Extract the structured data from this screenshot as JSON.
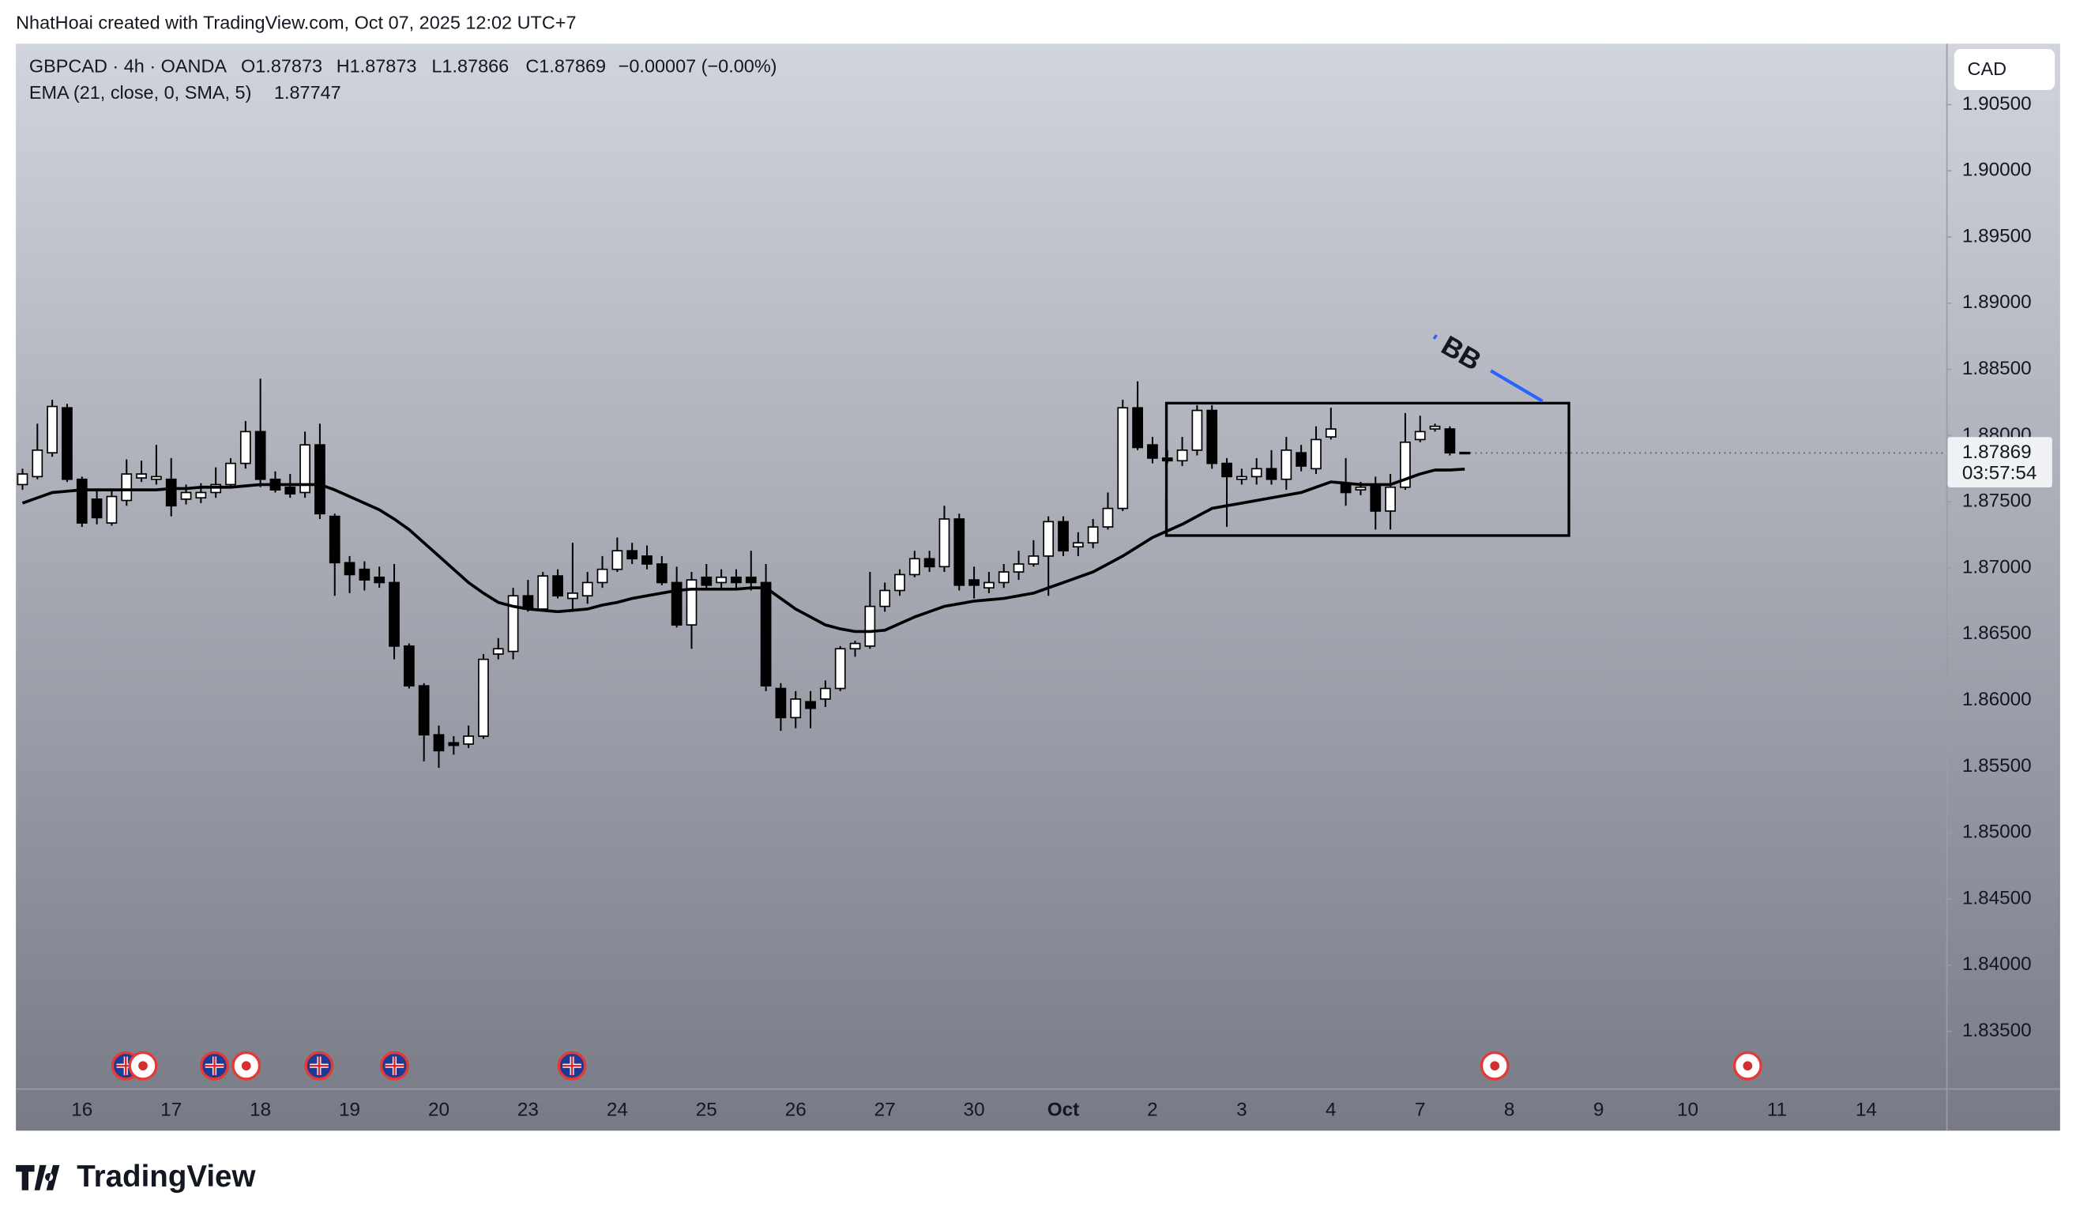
{
  "header": "NhatHoai created with TradingView.com, Oct 07, 2025 12:02 UTC+7",
  "legend": {
    "symbol": "GBPCAD · 4h · OANDA",
    "open": "O1.87873",
    "high": "H1.87873",
    "low": "L1.87866",
    "close": "C1.87869",
    "change": "−0.00007 (−0.00%)"
  },
  "currency_button": "CAD",
  "countdown": "03:57:54",
  "annotation": "BB",
  "footer": "TradingView",
  "chart_data": {
    "type": "candlestick",
    "categories": [
      null,
      null,
      null,
      null,
      "16",
      null,
      null,
      null,
      null,
      null,
      "17",
      null,
      null,
      null,
      null,
      null,
      "18",
      null,
      null,
      null,
      null,
      null,
      "19",
      null,
      null,
      null,
      null,
      null,
      "20",
      null,
      null,
      null,
      null,
      null,
      "23",
      null,
      null,
      null,
      null,
      null,
      "24",
      null,
      null,
      null,
      null,
      null,
      "25",
      null,
      null,
      null,
      null,
      null,
      "26",
      null,
      null,
      null,
      null,
      null,
      "27",
      null,
      null,
      null,
      null,
      null,
      "30",
      null,
      null,
      null,
      null,
      null,
      "Oct",
      null,
      null,
      null,
      null,
      null,
      "2",
      null,
      null,
      null,
      null,
      null,
      "3",
      null,
      null,
      null,
      null,
      null,
      "4",
      null,
      null,
      null,
      null,
      null,
      "7",
      null,
      null,
      null,
      null,
      null,
      "8",
      null,
      null,
      null,
      null,
      null,
      "9",
      null,
      null,
      null,
      null,
      null,
      "10",
      null,
      null,
      null,
      null,
      null,
      "11",
      null,
      null,
      null,
      null,
      null,
      "14"
    ],
    "open": [
      1.8763,
      1.8769,
      1.8787,
      1.8821,
      1.8767,
      1.8752,
      1.8734,
      1.8751,
      1.8768,
      1.8767,
      1.8767,
      1.8752,
      1.8753,
      1.8757,
      1.8763,
      1.8779,
      1.8803,
      1.8767,
      1.8761,
      1.8757,
      1.8793,
      1.8739,
      1.8704,
      1.8699,
      1.8693,
      1.8689,
      1.8641,
      1.8611,
      1.8574,
      1.8568,
      1.8567,
      1.8573,
      1.8635,
      1.8637,
      1.8679,
      1.8669,
      1.8694,
      1.8677,
      1.8679,
      1.8689,
      1.8699,
      1.8713,
      1.8709,
      1.8703,
      1.8689,
      1.8657,
      1.8693,
      1.8689,
      1.8693,
      1.8693,
      1.8689,
      1.8609,
      1.8587,
      1.8599,
      1.8601,
      1.8609,
      1.8639,
      1.8641,
      1.8671,
      1.8683,
      1.8695,
      1.8707,
      1.8701,
      1.8737,
      1.8691,
      1.8685,
      1.8689,
      1.8697,
      1.8703,
      1.8709,
      1.8735,
      1.8716,
      1.8719,
      1.8731,
      1.8745,
      1.8821,
      1.8793,
      1.8783,
      1.8781,
      1.8789,
      1.8819,
      1.8779,
      1.8767,
      1.8769,
      1.8775,
      1.8767,
      1.8787,
      1.8775,
      1.8799,
      1.8763,
      1.8759,
      1.8763,
      1.8743,
      1.8761,
      1.8797,
      1.8805,
      1.8805,
      1.87873,
      null,
      null,
      null,
      null,
      null,
      null,
      null,
      null,
      null,
      null,
      null,
      null,
      null,
      null,
      null,
      null,
      null,
      null,
      null,
      null,
      null,
      null,
      null,
      null,
      null,
      null,
      null
    ],
    "high": [
      1.8775,
      1.8809,
      1.8827,
      1.8824,
      1.8769,
      1.8759,
      1.8759,
      1.8782,
      1.8781,
      1.8793,
      1.8783,
      1.8763,
      1.8764,
      1.8776,
      1.8783,
      1.8811,
      1.8843,
      1.8773,
      1.8771,
      1.8803,
      1.8809,
      1.8741,
      1.8709,
      1.8705,
      1.8701,
      1.8703,
      1.8643,
      1.8613,
      1.8581,
      1.8573,
      1.8581,
      1.8635,
      1.8647,
      1.8685,
      1.8691,
      1.8697,
      1.8699,
      1.8719,
      1.8697,
      1.8709,
      1.8723,
      1.8719,
      1.8717,
      1.8709,
      1.8701,
      1.8697,
      1.8703,
      1.8699,
      1.8699,
      1.8713,
      1.8703,
      1.8613,
      1.8607,
      1.8607,
      1.8615,
      1.8641,
      1.8645,
      1.8697,
      1.8689,
      1.8699,
      1.8713,
      1.8713,
      1.8747,
      1.8741,
      1.8701,
      1.8697,
      1.8703,
      1.8713,
      1.8721,
      1.8739,
      1.8739,
      1.8727,
      1.8737,
      1.8757,
      1.8827,
      1.8841,
      1.8799,
      1.8789,
      1.8799,
      1.8823,
      1.8823,
      1.8783,
      1.8775,
      1.8783,
      1.8789,
      1.8799,
      1.8793,
      1.8807,
      1.8821,
      1.8783,
      1.8765,
      1.8769,
      1.8771,
      1.8817,
      1.8815,
      1.8809,
      1.8807,
      1.87873,
      null,
      null,
      null,
      null,
      null,
      null,
      null,
      null,
      null,
      null,
      null,
      null,
      null,
      null,
      null,
      null,
      null,
      null,
      null,
      null,
      null,
      null,
      null,
      null,
      null,
      null,
      null
    ],
    "low": [
      1.8759,
      1.8767,
      1.8784,
      1.8765,
      1.8731,
      1.8733,
      1.8732,
      1.8747,
      1.8765,
      1.8763,
      1.8739,
      1.8748,
      1.8749,
      1.8753,
      1.8761,
      1.8775,
      1.8761,
      1.8757,
      1.8753,
      1.8753,
      1.8737,
      1.8679,
      1.8681,
      1.8683,
      1.8685,
      1.8631,
      1.8609,
      1.8554,
      1.8549,
      1.8559,
      1.8564,
      1.8571,
      1.8631,
      1.8631,
      1.8667,
      1.8667,
      1.8677,
      1.8667,
      1.8673,
      1.8685,
      1.8697,
      1.8703,
      1.8699,
      1.8687,
      1.8655,
      1.8639,
      1.8683,
      1.8685,
      1.8685,
      1.8683,
      1.8607,
      1.8577,
      1.8579,
      1.8579,
      1.8595,
      1.8607,
      1.8633,
      1.8639,
      1.8667,
      1.8679,
      1.8693,
      1.8697,
      1.8697,
      1.8683,
      1.8677,
      1.8681,
      1.8685,
      1.8691,
      1.8701,
      1.8679,
      1.8709,
      1.8709,
      1.8715,
      1.8729,
      1.8743,
      1.8789,
      1.8779,
      1.8779,
      1.8777,
      1.8785,
      1.8775,
      1.8731,
      1.8763,
      1.8763,
      1.8763,
      1.8759,
      1.8773,
      1.8771,
      1.8797,
      1.8747,
      1.8755,
      1.8729,
      1.8729,
      1.8759,
      1.8795,
      1.8803,
      1.8785,
      1.87866,
      null,
      null,
      null,
      null,
      null,
      null,
      null,
      null,
      null,
      null,
      null,
      null,
      null,
      null,
      null,
      null,
      null,
      null,
      null,
      null,
      null,
      null,
      null,
      null,
      null,
      null,
      null
    ],
    "close": [
      1.8771,
      1.8789,
      1.8822,
      1.8767,
      1.8734,
      1.8738,
      1.8754,
      1.8771,
      1.8771,
      1.8769,
      1.8747,
      1.8757,
      1.8757,
      1.8763,
      1.8779,
      1.8803,
      1.8767,
      1.8759,
      1.8756,
      1.8793,
      1.8741,
      1.8704,
      1.8695,
      1.8691,
      1.8689,
      1.8641,
      1.8611,
      1.8574,
      1.8562,
      1.8566,
      1.8573,
      1.8631,
      1.8639,
      1.8679,
      1.8669,
      1.8694,
      1.8679,
      1.8681,
      1.8689,
      1.8699,
      1.8713,
      1.8707,
      1.8703,
      1.8689,
      1.8657,
      1.8691,
      1.8687,
      1.8693,
      1.8689,
      1.8689,
      1.8611,
      1.8587,
      1.8601,
      1.8594,
      1.8609,
      1.8639,
      1.8643,
      1.8671,
      1.8683,
      1.8695,
      1.8707,
      1.8701,
      1.8737,
      1.8687,
      1.8687,
      1.8689,
      1.8697,
      1.8703,
      1.8709,
      1.8735,
      1.8713,
      1.8719,
      1.8731,
      1.8745,
      1.8821,
      1.8791,
      1.8783,
      1.8781,
      1.8789,
      1.8819,
      1.8779,
      1.8769,
      1.8769,
      1.8775,
      1.8767,
      1.8789,
      1.8777,
      1.8797,
      1.8805,
      1.8757,
      1.8761,
      1.8743,
      1.8761,
      1.8795,
      1.8803,
      1.8807,
      1.8787,
      1.87869,
      null,
      null,
      null,
      null,
      null,
      null,
      null,
      null,
      null,
      null,
      null,
      null,
      null,
      null,
      null,
      null,
      null,
      null,
      null,
      null,
      null,
      null,
      null,
      null,
      null,
      null,
      null
    ],
    "up_color": "#ffffff",
    "down_color": "#000000",
    "ema": {
      "name": "EMA (21, close, 0, SMA, 5)",
      "color": "#000000",
      "values": [
        1.8749,
        1.8753,
        1.8757,
        1.8758,
        1.8759,
        1.8759,
        1.8759,
        1.8759,
        1.8759,
        1.8759,
        1.876,
        1.876,
        1.8761,
        1.8761,
        1.8761,
        1.8762,
        1.8763,
        1.8763,
        1.8763,
        1.8763,
        1.8763,
        1.8759,
        1.8754,
        1.8749,
        1.8744,
        1.8737,
        1.8729,
        1.8719,
        1.8709,
        1.8699,
        1.8689,
        1.8681,
        1.8674,
        1.8671,
        1.8669,
        1.8668,
        1.8667,
        1.8668,
        1.8669,
        1.8672,
        1.8674,
        1.8677,
        1.8679,
        1.8681,
        1.8683,
        1.8684,
        1.8684,
        1.8684,
        1.8684,
        1.8685,
        1.8685,
        1.8677,
        1.8669,
        1.8663,
        1.8657,
        1.8654,
        1.8652,
        1.8652,
        1.8653,
        1.8658,
        1.8663,
        1.8667,
        1.8671,
        1.8673,
        1.8675,
        1.8676,
        1.8677,
        1.8679,
        1.8681,
        1.8685,
        1.8689,
        1.8693,
        1.8697,
        1.8703,
        1.8709,
        1.8716,
        1.8723,
        1.8728,
        1.8733,
        1.8739,
        1.8745,
        1.8747,
        1.8749,
        1.8751,
        1.8753,
        1.8755,
        1.8757,
        1.8761,
        1.8765,
        1.8764,
        1.8763,
        1.8763,
        1.8763,
        1.8767,
        1.8771,
        1.8774,
        1.8774,
        1.87747,
        null,
        null,
        null,
        null,
        null,
        null,
        null,
        null,
        null,
        null,
        null,
        null,
        null,
        null,
        null,
        null,
        null,
        null,
        null,
        null,
        null,
        null,
        null,
        null,
        null,
        null,
        null
      ]
    },
    "ylim": [
      1.8307,
      1.9096
    ],
    "yticks": [
      {
        "value": 1.835,
        "label": "1.83500"
      },
      {
        "value": 1.84,
        "label": "1.84000"
      },
      {
        "value": 1.845,
        "label": "1.84500"
      },
      {
        "value": 1.85,
        "label": "1.85000"
      },
      {
        "value": 1.855,
        "label": "1.85500"
      },
      {
        "value": 1.86,
        "label": "1.86000"
      },
      {
        "value": 1.865,
        "label": "1.86500"
      },
      {
        "value": 1.87,
        "label": "1.87000"
      },
      {
        "value": 1.875,
        "label": "1.87500"
      },
      {
        "value": 1.88,
        "label": "1.88000"
      },
      {
        "value": 1.885,
        "label": "1.88500"
      },
      {
        "value": 1.89,
        "label": "1.89000"
      },
      {
        "value": 1.895,
        "label": "1.89500"
      },
      {
        "value": 1.9,
        "label": "1.90000"
      },
      {
        "value": 1.905,
        "label": "1.90500"
      }
    ],
    "grid": false
  }
}
